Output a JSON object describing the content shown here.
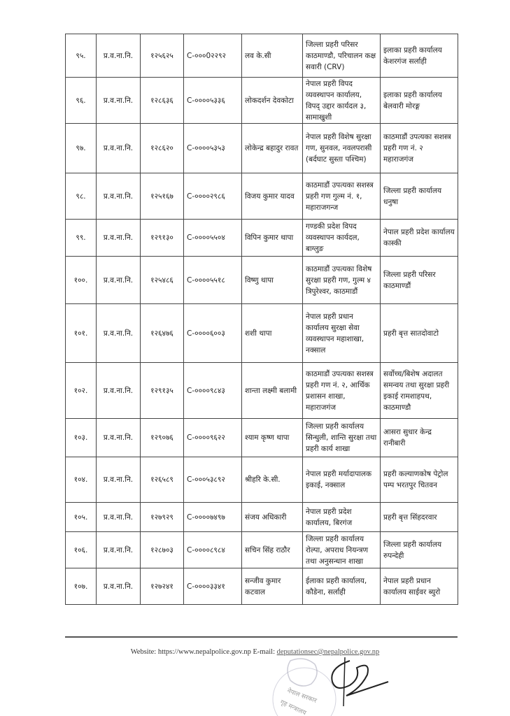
{
  "rows": [
    {
      "sn": "९५.",
      "rank": "प्र.व.ना.नि.",
      "num": "१२५६२५",
      "code": "C-०००0२२९२",
      "name": "लव के.सी",
      "from": "जिल्ला प्रहरी परिसर काठमाण्डौ, परिचालन कक्ष सवारी (CRV)",
      "to": "इलाका प्रहरी कार्यालय केशरगंज सर्लाही"
    },
    {
      "sn": "९६.",
      "rank": "प्र.व.ना.नि.",
      "num": "१२८६३६",
      "code": "C-००००५३३६",
      "name": "लोकदर्शन देवकोटा",
      "from": "नेपाल प्रहरी विपद व्यवस्थापन कार्यालय, विपद् उद्दार कार्यदल ३, सामाखुशी",
      "to": "इलाका प्रहरी कार्यालय बेलवारी मोरङ्ग"
    },
    {
      "sn": "९७.",
      "rank": "प्र.व.ना.नि.",
      "num": "१२८६२०",
      "code": "C-००००५३५३",
      "name": "लोकेन्द्र बहादुर रावत",
      "from": "नेपाल प्रहरी विशेष सुरक्षा गण, सुनवल, नवलपरासी (बर्दघाट सुस्ता पश्चिम)",
      "to": "काठमाडौं उपत्यका सशस्त्र प्रहरी गण नं. २ महाराजगंज"
    },
    {
      "sn": "९८.",
      "rank": "प्र.व.ना.नि.",
      "num": "१२५१६७",
      "code": "C-००००२९८६",
      "name": "विजय कुमार यादव",
      "from": "काठमाडौं उपत्यका सशस्त्र प्रहरी गण गुल्म नं. १, महाराजगन्ज",
      "to": "जिल्ला प्रहरी कार्यालय धनुषा"
    },
    {
      "sn": "९९.",
      "rank": "प्र.व.ना.नि.",
      "num": "१२९१३०",
      "code": "C-००००५५०४",
      "name": "विपिन कुमार थापा",
      "from": "गण्डकी प्रदेश विपद व्यवस्थापन कार्यदल, बाग्लुङ",
      "to": "नेपाल प्रहरी प्रदेश कार्यालय कास्की"
    },
    {
      "sn": "१००.",
      "rank": "प्र.व.ना.नि.",
      "num": "१२५४८६",
      "code": "C-००००५५१८",
      "name": "विष्णु थापा",
      "from": "काठमाडौं उपत्यका विशेष सुरक्षा प्रहरी गण, गुल्म ४ त्रिपुरेश्वर, काठमाडौं",
      "to": "जिल्ला प्रहरी परिसर काठमाण्डौं"
    },
    {
      "sn": "१०१.",
      "rank": "प्र.व.ना.नि.",
      "num": "१२६४७६",
      "code": "C-००००६००३",
      "name": "शशी थापा",
      "from": "नेपाल प्रहरी प्रधान कार्यालय सुरक्षा सेवा व्यवस्थापन महाशाखा, नक्साल",
      "to": "प्रहरी बृत्त सातदोवाटो"
    },
    {
      "sn": "१०२.",
      "rank": "प्र.व.ना.नि.",
      "num": "१२९१३५",
      "code": "C-००००९८४३",
      "name": "शान्ता लक्ष्मी बलामी",
      "from": "काठमाडौं उपत्यका सशस्त्र प्रहरी गण नं. २, आर्थिक प्रशासन शाखा, महाराजगंज",
      "to": "सर्वोच्च/बिशेष अदालत समन्वय तथा सुरक्षा प्रहरी इकाई रामशाहपथ, काठमाण्डौ"
    },
    {
      "sn": "१०३.",
      "rank": "प्र.व.ना.नि.",
      "num": "१२९०७६",
      "code": "C-००००९६२२",
      "name": "श्याम कृष्ण थापा",
      "from": "जिल्ला प्रहरी कार्यालय सिन्धुली, शान्ति सुरक्षा तथा प्रहरी कार्य शाखा",
      "to": "आसरा सुधार केन्द्र रानीबारी"
    },
    {
      "sn": "१०४.",
      "rank": "प्र.व.ना.नि.",
      "num": "१२६५८९",
      "code": "C-०००५३८९२",
      "name": "श्रीहरि के.सी.",
      "from": "नेपाल प्रहरी मर्यादापालक इकाई, नक्साल",
      "to": "प्रहरी कल्याणकोष पेट्रोल पम्प भरतपुर चितवन"
    },
    {
      "sn": "१०५.",
      "rank": "प्र.व.ना.नि.",
      "num": "१२७९२९",
      "code": "C-००००७४९७",
      "name": "संजय अधिकारी",
      "from": "नेपाल प्रहरी प्रदेश कार्यालय, बिरगंज",
      "to": "प्रहरी बृत्त सिंहदरवार"
    },
    {
      "sn": "१०६.",
      "rank": "प्र.व.ना.नि.",
      "num": "१२८७०३",
      "code": "C-००००८९८४",
      "name": "सचिन सिंह राठौर",
      "from": "जिल्ला प्रहरी कार्यालय रोल्पा, अपराध नियन्त्रण तथा अनुसन्धान शाखा",
      "to": "जिल्ला प्रहरी कार्यालय रुपन्देही"
    },
    {
      "sn": "१०७.",
      "rank": "प्र.व.ना.नि.",
      "num": "१२७२४१",
      "code": "C-००००३३४१",
      "name": "सन्जीव कुमार कटवाल",
      "from": "ईलाका प्रहरी कार्यालय, कौडेना, सर्लाही",
      "to": "नेपाल प्रहरी प्रधान कार्यालय साईवर ब्युरो"
    }
  ],
  "footer": {
    "website_prefix": "Website: https://www.nepalpolice.gov.np E-mail: ",
    "email": "deputationsec@nepalpolice.gov.np"
  },
  "stamp": {
    "text": "नेपाल सरकार गृह मन्त्रालय नेपाल प्रहरी प्रधान कार्यालय"
  }
}
